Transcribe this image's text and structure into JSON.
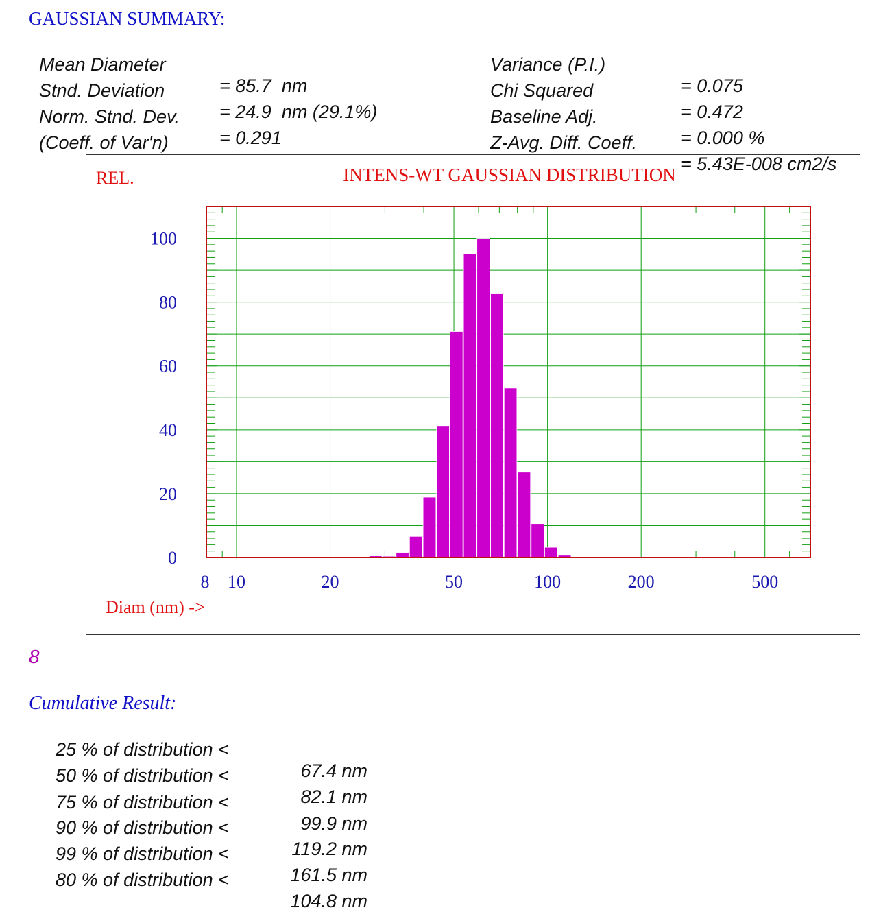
{
  "summary": {
    "header": "GAUSSIAN SUMMARY:",
    "left": [
      {
        "label": "Mean Diameter",
        "value": "= 85.7  nm"
      },
      {
        "label": "Stnd. Deviation",
        "value": "= 24.9  nm (29.1%)"
      },
      {
        "label": "Norm. Stnd. Dev.",
        "value": "= 0.291"
      },
      {
        "label": "(Coeff. of Var'n)",
        "value": ""
      }
    ],
    "right": [
      {
        "label": "Variance (P.I.)",
        "value": "= 0.075"
      },
      {
        "label": "Chi Squared",
        "value": "= 0.472"
      },
      {
        "label": "Baseline Adj.",
        "value": "= 0.000 %"
      },
      {
        "label": "Z-Avg. Diff. Coeff.",
        "value": "= 5.43E-008 cm2/s"
      }
    ]
  },
  "chart_data": {
    "type": "bar",
    "title": "INTENS-WT GAUSSIAN DISTRIBUTION",
    "ylabel": "REL.",
    "xlabel": "Diam (nm) ->",
    "xscale": "log",
    "xlim": [
      8,
      700
    ],
    "ylim": [
      0,
      110
    ],
    "xticks": [
      "8",
      "10",
      "20",
      "50",
      "100",
      "200",
      "500"
    ],
    "yticks": [
      "0",
      "20",
      "40",
      "60",
      "80",
      "100"
    ],
    "grid": true,
    "colors": {
      "bars": "#cc00cc",
      "frame": "#c01010",
      "grid": "#11a011",
      "ticks_text": "#1a1ab0",
      "title": "#e01010"
    },
    "bins": [
      {
        "lo": 26.7,
        "hi": 29.5,
        "value": 0.5
      },
      {
        "lo": 29.5,
        "hi": 32.6,
        "value": 0.4
      },
      {
        "lo": 32.6,
        "hi": 36.0,
        "value": 1.6
      },
      {
        "lo": 36.0,
        "hi": 39.8,
        "value": 6.6
      },
      {
        "lo": 39.8,
        "hi": 44.0,
        "value": 18.9
      },
      {
        "lo": 44.0,
        "hi": 48.6,
        "value": 41.3
      },
      {
        "lo": 48.6,
        "hi": 53.7,
        "value": 70.8
      },
      {
        "lo": 53.7,
        "hi": 59.3,
        "value": 95.1
      },
      {
        "lo": 59.3,
        "hi": 65.6,
        "value": 100.0
      },
      {
        "lo": 65.6,
        "hi": 72.5,
        "value": 82.6
      },
      {
        "lo": 72.5,
        "hi": 80.1,
        "value": 53.1
      },
      {
        "lo": 80.1,
        "hi": 88.6,
        "value": 26.7
      },
      {
        "lo": 88.6,
        "hi": 97.9,
        "value": 10.6
      },
      {
        "lo": 97.9,
        "hi": 108.2,
        "value": 3.2
      },
      {
        "lo": 108.2,
        "hi": 119.6,
        "value": 0.7
      }
    ]
  },
  "figure_number": "8",
  "cumulative": {
    "title": "Cumulative Result:",
    "rows": [
      {
        "text": "25 % of distribution <",
        "value": "67.4 nm"
      },
      {
        "text": "50 % of distribution <",
        "value": "82.1 nm"
      },
      {
        "text": "75 % of distribution <",
        "value": "99.9 nm"
      },
      {
        "text": "90 % of distribution <",
        "value": "119.2 nm"
      },
      {
        "text": "99 % of distribution <",
        "value": "161.5 nm"
      },
      {
        "text": "80 % of distribution <",
        "value": "104.8 nm"
      }
    ]
  }
}
